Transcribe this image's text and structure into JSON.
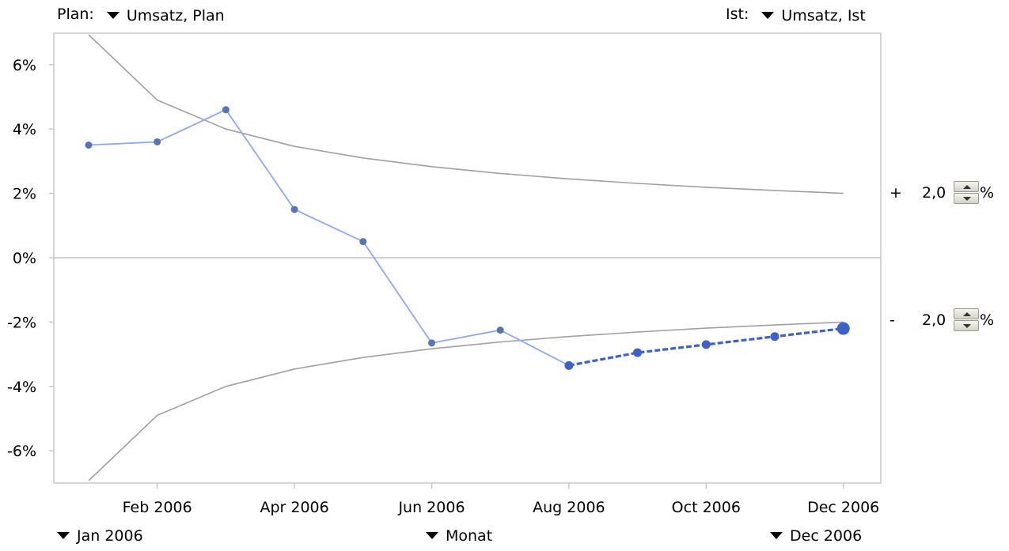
{
  "plan_selector": {
    "label": "Plan:",
    "value": "Umsatz, Plan"
  },
  "actual_selector": {
    "label": "Ist:",
    "value": "Umsatz, Ist"
  },
  "period_start": {
    "value": "Jan 2006"
  },
  "period_unit": {
    "value": "Monat"
  },
  "period_end": {
    "value": "Dec 2006"
  },
  "tolerance_upper": {
    "sign": "+",
    "value": "2,0",
    "unit": "%"
  },
  "tolerance_lower": {
    "sign": "-",
    "value": "2,0",
    "unit": "%"
  },
  "colors": {
    "actual": "#8fa9f0",
    "actual_point": "#5a73b3",
    "forecast": "#3f60c4",
    "band": "#a0a0a0",
    "zero": "#c0c0c0",
    "frame": "#c8c8c8"
  },
  "chart_data": {
    "type": "line",
    "title": "",
    "xlabel": "",
    "ylabel": "",
    "ylim": [
      -7,
      7
    ],
    "yticks": [
      {
        "value": 6,
        "label": "6%"
      },
      {
        "value": 4,
        "label": "4%"
      },
      {
        "value": 2,
        "label": "2%"
      },
      {
        "value": 0,
        "label": "0%"
      },
      {
        "value": -2,
        "label": "-2%"
      },
      {
        "value": -4,
        "label": "-4%"
      },
      {
        "value": -6,
        "label": "-6%"
      }
    ],
    "months": [
      "Jan 2006",
      "Feb 2006",
      "Mar 2006",
      "Apr 2006",
      "May 2006",
      "Jun 2006",
      "Jul 2006",
      "Aug 2006",
      "Sep 2006",
      "Oct 2006",
      "Nov 2006",
      "Dec 2006"
    ],
    "xtick_labels": [
      "Feb 2006",
      "Apr 2006",
      "Jun 2006",
      "Aug 2006",
      "Oct 2006",
      "Dec 2006"
    ],
    "series": [
      {
        "role": "actual",
        "style": "solid",
        "x": [
          "Jan 2006",
          "Feb 2006",
          "Mar 2006",
          "Apr 2006",
          "May 2006",
          "Jun 2006",
          "Jul 2006",
          "Aug 2006"
        ],
        "values": [
          3.5,
          3.6,
          4.6,
          1.5,
          0.5,
          -2.65,
          -2.25,
          -3.35
        ]
      },
      {
        "role": "forecast",
        "style": "dashed",
        "x": [
          "Aug 2006",
          "Sep 2006",
          "Oct 2006",
          "Nov 2006",
          "Dec 2006"
        ],
        "values": [
          -3.35,
          -2.95,
          -2.7,
          -2.45,
          -2.2
        ]
      },
      {
        "role": "upper-tolerance",
        "style": "thin",
        "x": [
          "Jan 2006",
          "Feb 2006",
          "Mar 2006",
          "Apr 2006",
          "May 2006",
          "Jun 2006",
          "Jul 2006",
          "Aug 2006",
          "Sep 2006",
          "Oct 2006",
          "Nov 2006",
          "Dec 2006"
        ],
        "values": [
          6.93,
          4.9,
          4.0,
          3.46,
          3.1,
          2.83,
          2.62,
          2.45,
          2.31,
          2.19,
          2.09,
          2.0
        ]
      },
      {
        "role": "lower-tolerance",
        "style": "thin",
        "x": [
          "Jan 2006",
          "Feb 2006",
          "Mar 2006",
          "Apr 2006",
          "May 2006",
          "Jun 2006",
          "Jul 2006",
          "Aug 2006",
          "Sep 2006",
          "Oct 2006",
          "Nov 2006",
          "Dec 2006"
        ],
        "values": [
          -6.93,
          -4.9,
          -4.0,
          -3.46,
          -3.1,
          -2.83,
          -2.62,
          -2.45,
          -2.31,
          -2.19,
          -2.09,
          -2.0
        ]
      }
    ],
    "grid": false,
    "legend": "none"
  }
}
